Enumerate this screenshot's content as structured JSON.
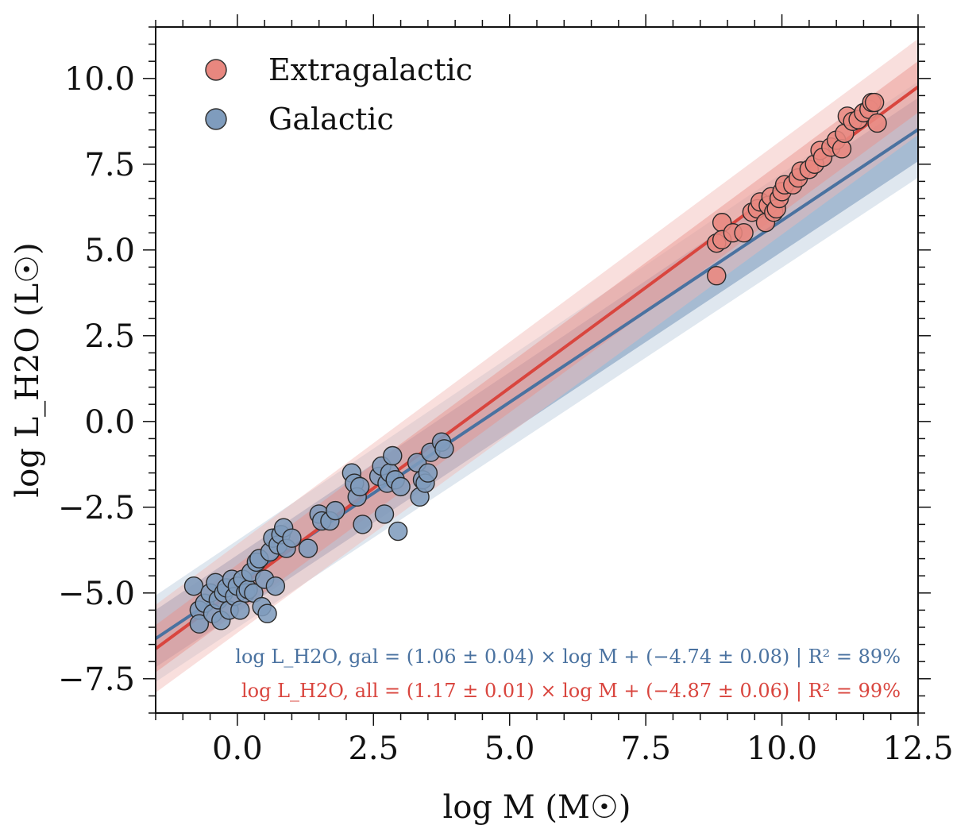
{
  "chart_data": {
    "type": "scatter",
    "xlabel": "log M (M☉)",
    "ylabel": "log L_H2O (L☉)",
    "xlim": [
      -1.5,
      12.5
    ],
    "ylim": [
      -8.5,
      11.5
    ],
    "x_ticks": [
      0.0,
      2.5,
      5.0,
      7.5,
      10.0,
      12.5
    ],
    "x_tick_labels": [
      "0.0",
      "2.5",
      "5.0",
      "7.5",
      "10.0",
      "12.5"
    ],
    "y_ticks": [
      10.0,
      7.5,
      5.0,
      2.5,
      0.0,
      -2.5,
      -5.0,
      -7.5
    ],
    "y_tick_labels": [
      "10.0",
      "7.5",
      "5.0",
      "2.5",
      "0.0",
      "−2.5",
      "−5.0",
      "−7.5"
    ],
    "grid": false,
    "legend_position": "top-left",
    "colors": {
      "extragalactic": "#e8877f",
      "galactic": "#7f9cbd",
      "fit_all": "#d9453e",
      "fit_gal": "#4a72a0"
    },
    "series": [
      {
        "name": "Extragalactic",
        "color": "#e8877f",
        "points": [
          [
            8.8,
            4.25
          ],
          [
            8.8,
            5.2
          ],
          [
            8.9,
            5.8
          ],
          [
            8.9,
            5.3
          ],
          [
            9.1,
            5.5
          ],
          [
            9.3,
            5.5
          ],
          [
            9.45,
            6.1
          ],
          [
            9.55,
            6.2
          ],
          [
            9.6,
            6.4
          ],
          [
            9.7,
            5.8
          ],
          [
            9.75,
            6.3
          ],
          [
            9.8,
            6.55
          ],
          [
            9.85,
            6.1
          ],
          [
            9.9,
            6.2
          ],
          [
            9.95,
            6.5
          ],
          [
            10.0,
            6.7
          ],
          [
            10.05,
            6.9
          ],
          [
            10.2,
            6.9
          ],
          [
            10.3,
            7.1
          ],
          [
            10.35,
            7.3
          ],
          [
            10.5,
            7.35
          ],
          [
            10.6,
            7.5
          ],
          [
            10.7,
            7.9
          ],
          [
            10.75,
            7.7
          ],
          [
            10.9,
            8.0
          ],
          [
            11.0,
            8.2
          ],
          [
            11.1,
            7.95
          ],
          [
            11.15,
            8.4
          ],
          [
            11.2,
            8.9
          ],
          [
            11.3,
            8.75
          ],
          [
            11.4,
            8.8
          ],
          [
            11.5,
            9.0
          ],
          [
            11.6,
            9.1
          ],
          [
            11.65,
            9.3
          ],
          [
            11.7,
            9.3
          ],
          [
            11.75,
            8.7
          ]
        ]
      },
      {
        "name": "Galactic",
        "color": "#7f9cbd",
        "points": [
          [
            -0.8,
            -4.8
          ],
          [
            -0.7,
            -5.5
          ],
          [
            -0.7,
            -5.9
          ],
          [
            -0.6,
            -5.3
          ],
          [
            -0.5,
            -5.0
          ],
          [
            -0.45,
            -5.6
          ],
          [
            -0.4,
            -4.7
          ],
          [
            -0.35,
            -5.2
          ],
          [
            -0.3,
            -5.8
          ],
          [
            -0.25,
            -5.0
          ],
          [
            -0.2,
            -4.85
          ],
          [
            -0.15,
            -5.5
          ],
          [
            -0.1,
            -4.6
          ],
          [
            -0.05,
            -5.1
          ],
          [
            0.0,
            -4.8
          ],
          [
            0.05,
            -5.5
          ],
          [
            0.1,
            -4.6
          ],
          [
            0.15,
            -5.0
          ],
          [
            0.2,
            -4.9
          ],
          [
            0.25,
            -4.4
          ],
          [
            0.3,
            -5.0
          ],
          [
            0.35,
            -4.1
          ],
          [
            0.4,
            -4.0
          ],
          [
            0.45,
            -5.4
          ],
          [
            0.5,
            -4.6
          ],
          [
            0.55,
            -5.6
          ],
          [
            0.6,
            -3.8
          ],
          [
            0.65,
            -3.4
          ],
          [
            0.7,
            -4.8
          ],
          [
            0.75,
            -3.6
          ],
          [
            0.8,
            -3.3
          ],
          [
            0.85,
            -3.1
          ],
          [
            0.9,
            -3.7
          ],
          [
            1.0,
            -3.4
          ],
          [
            1.3,
            -3.7
          ],
          [
            1.5,
            -2.7
          ],
          [
            1.55,
            -2.9
          ],
          [
            1.7,
            -2.9
          ],
          [
            1.8,
            -2.6
          ],
          [
            2.1,
            -1.5
          ],
          [
            2.15,
            -1.8
          ],
          [
            2.2,
            -2.2
          ],
          [
            2.25,
            -1.9
          ],
          [
            2.3,
            -3.0
          ],
          [
            2.6,
            -1.6
          ],
          [
            2.65,
            -1.3
          ],
          [
            2.7,
            -2.7
          ],
          [
            2.75,
            -1.8
          ],
          [
            2.8,
            -1.5
          ],
          [
            2.85,
            -1.0
          ],
          [
            2.9,
            -1.7
          ],
          [
            2.95,
            -3.2
          ],
          [
            3.0,
            -1.9
          ],
          [
            3.3,
            -1.2
          ],
          [
            3.35,
            -2.2
          ],
          [
            3.4,
            -1.7
          ],
          [
            3.45,
            -1.8
          ],
          [
            3.5,
            -1.5
          ],
          [
            3.55,
            -0.9
          ],
          [
            3.75,
            -0.6
          ],
          [
            3.8,
            -0.8
          ]
        ]
      }
    ],
    "fits": [
      {
        "name": "gal",
        "slope": 1.06,
        "intercept": -4.74,
        "color": "#4a72a0"
      },
      {
        "name": "all",
        "slope": 1.17,
        "intercept": -4.87,
        "color": "#d9453e"
      }
    ],
    "annotations": {
      "eq_gal": "log L_H2O, gal = (1.06 ± 0.04) × log M + (−4.74 ± 0.08) | R² = 89%",
      "eq_all": "log L_H2O, all = (1.17 ± 0.01) × log M + (−4.87 ± 0.06) | R² = 99%"
    }
  }
}
